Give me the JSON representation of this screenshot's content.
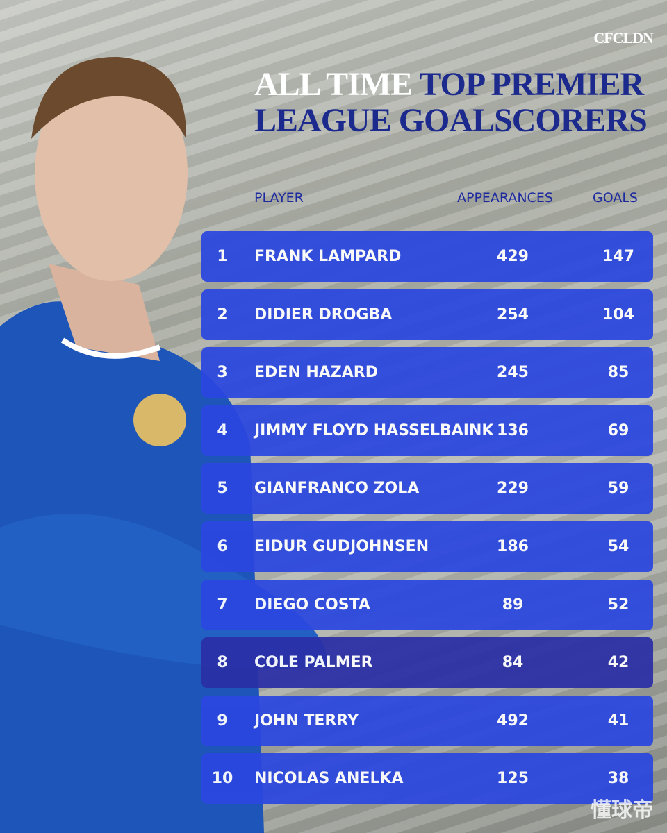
{
  "brand": "CFCLDN",
  "title": {
    "lines": [
      [
        "ALL TIME",
        "TOP PREMIER"
      ],
      [
        "LEAGUE GOALSCORERS"
      ]
    ],
    "highlight_color": "#1b2a8c"
  },
  "table": {
    "headers": {
      "player": "PLAYER",
      "appearances": "APPEARANCES",
      "goals": "GOALS"
    },
    "rows": [
      {
        "rank": 1,
        "player": "FRANK LAMPARD",
        "appearances": 429,
        "goals": 147,
        "color": "#2b47e0"
      },
      {
        "rank": 2,
        "player": "DIDIER DROGBA",
        "appearances": 254,
        "goals": 104,
        "color": "#2b47e0"
      },
      {
        "rank": 3,
        "player": "EDEN HAZARD",
        "appearances": 245,
        "goals": 85,
        "color": "#2b47e0"
      },
      {
        "rank": 4,
        "player": "JIMMY FLOYD HASSELBAINK",
        "appearances": 136,
        "goals": 69,
        "color": "#2b47e0"
      },
      {
        "rank": 5,
        "player": "GIANFRANCO ZOLA",
        "appearances": 229,
        "goals": 59,
        "color": "#2b47e0"
      },
      {
        "rank": 6,
        "player": "EIDUR GUDJOHNSEN",
        "appearances": 186,
        "goals": 54,
        "color": "#2b47e0"
      },
      {
        "rank": 7,
        "player": "DIEGO COSTA",
        "appearances": 89,
        "goals": 52,
        "color": "#2b47e0"
      },
      {
        "rank": 8,
        "player": "COLE PALMER",
        "appearances": 84,
        "goals": 42,
        "color": "#2a2fa6"
      },
      {
        "rank": 9,
        "player": "JOHN TERRY",
        "appearances": 492,
        "goals": 41,
        "color": "#2b47e0"
      },
      {
        "rank": 10,
        "player": "NICOLAS ANELKA",
        "appearances": 125,
        "goals": 38,
        "color": "#2b47e0"
      }
    ]
  },
  "watermark": "懂球帝"
}
